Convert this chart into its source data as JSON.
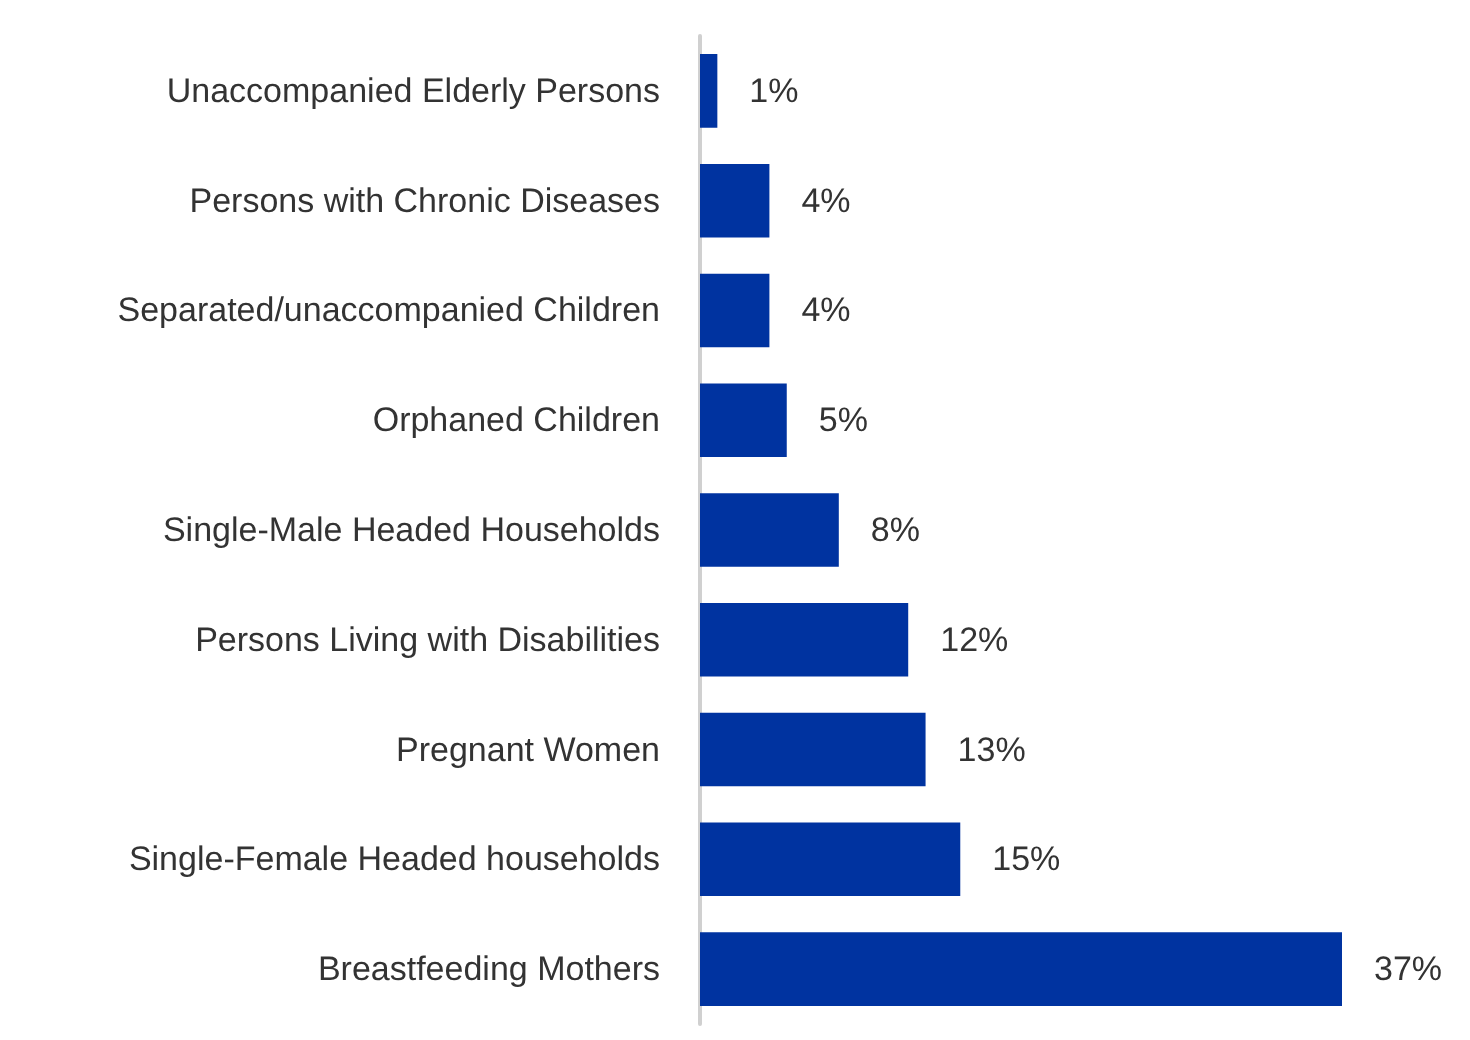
{
  "chart_data": {
    "type": "bar",
    "orientation": "horizontal",
    "categories": [
      "Unaccompanied Elderly Persons",
      "Persons with Chronic Diseases",
      "Separated/unaccompanied Children",
      "Orphaned Children",
      "Single-Male Headed Households",
      "Persons Living with Disabilities",
      "Pregnant Women",
      "Single-Female Headed households",
      "Breastfeeding Mothers"
    ],
    "values": [
      1,
      4,
      4,
      5,
      8,
      12,
      13,
      15,
      37
    ],
    "value_labels": [
      "1%",
      "4%",
      "4%",
      "5%",
      "8%",
      "12%",
      "13%",
      "15%",
      "37%"
    ],
    "color": "#0033a0"
  }
}
